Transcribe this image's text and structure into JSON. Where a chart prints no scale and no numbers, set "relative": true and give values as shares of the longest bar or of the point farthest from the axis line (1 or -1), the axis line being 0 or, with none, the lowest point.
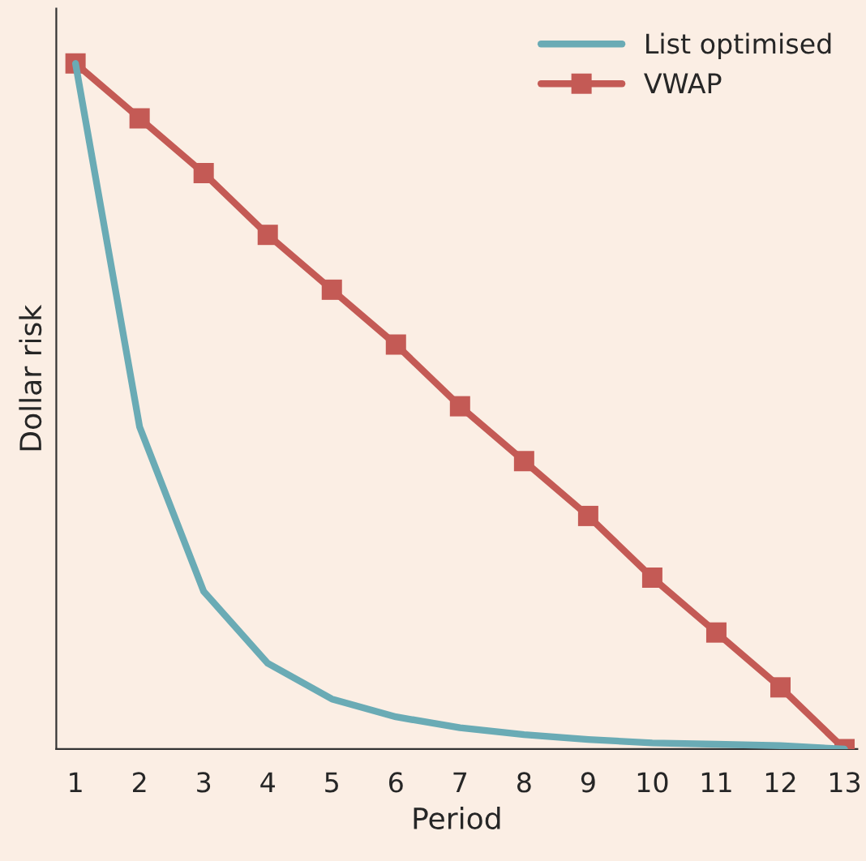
{
  "chart_data": {
    "type": "line",
    "xlabel": "Period",
    "ylabel": "Dollar risk",
    "relative": true,
    "categories": [
      "1",
      "2",
      "3",
      "4",
      "5",
      "6",
      "7",
      "8",
      "9",
      "10",
      "11",
      "12",
      "13"
    ],
    "series": [
      {
        "name": "List optimised",
        "color": "#6aabb5",
        "marker": "none",
        "values": [
          1,
          0.47,
          0.23,
          0.125,
          0.073,
          0.047,
          0.031,
          0.021,
          0.014,
          0.009,
          0.007,
          0.005,
          0
        ]
      },
      {
        "name": "VWAP",
        "color": "#c45a55",
        "marker": "square",
        "values": [
          1,
          0.92,
          0.84,
          0.75,
          0.67,
          0.59,
          0.5,
          0.42,
          0.34,
          0.25,
          0.17,
          0.09,
          0
        ]
      }
    ],
    "legend": "top right",
    "grid": false
  }
}
